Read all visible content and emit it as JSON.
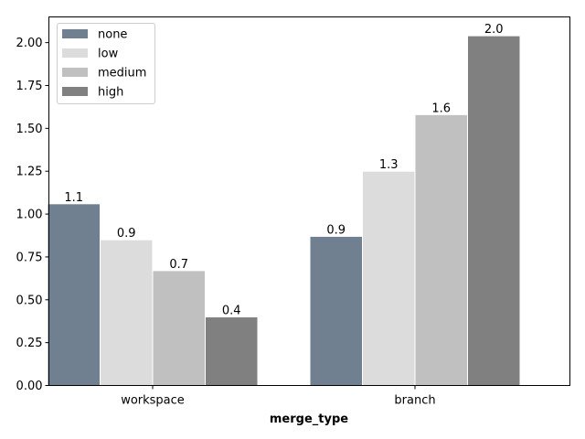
{
  "chart_data": {
    "type": "bar",
    "title": "",
    "xlabel": "merge_type",
    "ylabel": "",
    "categories": [
      "workspace",
      "branch"
    ],
    "ylim": [
      0,
      2.15
    ],
    "yticks": [
      "0.00",
      "0.25",
      "0.50",
      "0.75",
      "1.00",
      "1.25",
      "1.50",
      "1.75",
      "2.00"
    ],
    "grid": false,
    "legend_position": "top-left",
    "series": [
      {
        "name": "none",
        "color": "#708090",
        "values": [
          1.06,
          0.87
        ],
        "labels": [
          "1.1",
          "0.9"
        ]
      },
      {
        "name": "low",
        "color": "#dcdcdc",
        "values": [
          0.85,
          1.25
        ],
        "labels": [
          "0.9",
          "1.3"
        ]
      },
      {
        "name": "medium",
        "color": "#c0c0c0",
        "values": [
          0.67,
          1.58
        ],
        "labels": [
          "0.7",
          "1.6"
        ]
      },
      {
        "name": "high",
        "color": "#808080",
        "values": [
          0.4,
          2.04
        ],
        "labels": [
          "0.4",
          "2.0"
        ]
      }
    ]
  }
}
